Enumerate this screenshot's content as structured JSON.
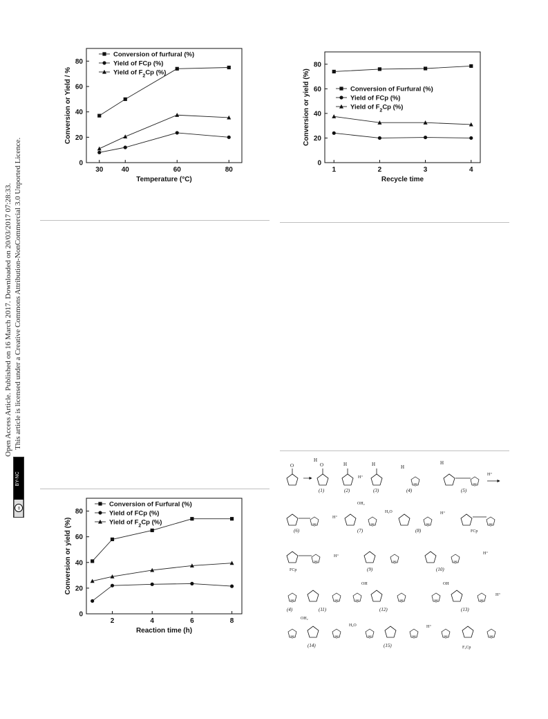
{
  "sidebar": {
    "line1": "Open Access Article. Published on 16 March 2017. Downloaded on 20/03/2017 07:28:33.",
    "line2": "This article is licensed under a Creative Commons Attribution-NonCommercial 3.0 Unported Licence.",
    "badge_cc": "cc",
    "badge_by": "BY-NC"
  },
  "chart_data": [
    {
      "type": "line",
      "xlabel": "Temperature (°C)",
      "ylabel": "Conversion or Yield / %",
      "x": [
        30,
        40,
        60,
        80
      ],
      "xlim": [
        25,
        85
      ],
      "ylim": [
        0,
        90
      ],
      "xticks": [
        "30",
        "40",
        "60",
        "80"
      ],
      "yticks": [
        "0",
        "20",
        "40",
        "60",
        "80"
      ],
      "legend_position": "top-left",
      "series": [
        {
          "name": "Conversion of furfural (%)",
          "marker": "square",
          "values": [
            37,
            50,
            74,
            75
          ]
        },
        {
          "name": "Yield of FCp (%)",
          "marker": "circle",
          "values": [
            8,
            12,
            23.5,
            20
          ]
        },
        {
          "name": "Yield of F2Cp (%)",
          "marker": "triangle",
          "values": [
            11,
            20.5,
            37.5,
            35.5
          ]
        }
      ]
    },
    {
      "type": "line",
      "xlabel": "Recycle time",
      "ylabel": "Conversion or yield (%)",
      "x": [
        1,
        2,
        3,
        4
      ],
      "xlim": [
        0.8,
        4.2
      ],
      "ylim": [
        0,
        90
      ],
      "xticks": [
        "1",
        "2",
        "3",
        "4"
      ],
      "yticks": [
        "0",
        "20",
        "40",
        "60",
        "80"
      ],
      "legend_position": "center-left",
      "series": [
        {
          "name": "Conversion of Furfural (%)",
          "marker": "square",
          "values": [
            74,
            76,
            76.5,
            78.5
          ]
        },
        {
          "name": "Yield of FCp (%)",
          "marker": "circle",
          "values": [
            24,
            20,
            20.5,
            20
          ]
        },
        {
          "name": "Yield of F2Cp (%)",
          "marker": "triangle",
          "values": [
            37.5,
            32.5,
            32.5,
            31
          ]
        }
      ]
    },
    {
      "type": "line",
      "xlabel": "Reaction time (h)",
      "ylabel": "Conversion or yield (%)",
      "x": [
        1,
        2,
        4,
        6,
        8
      ],
      "xlim": [
        0.7,
        8.5
      ],
      "ylim": [
        0,
        90
      ],
      "xticks": [
        "2",
        "4",
        "6",
        "8"
      ],
      "xtick_values": [
        2,
        4,
        6,
        8
      ],
      "yticks": [
        "0",
        "20",
        "40",
        "60",
        "80"
      ],
      "legend_position": "top-left",
      "series": [
        {
          "name": "Conversion of Furfural (%)",
          "marker": "square",
          "values": [
            41,
            58,
            65,
            74,
            74
          ]
        },
        {
          "name": "Yield of FCp (%)",
          "marker": "circle",
          "values": [
            10,
            22,
            23,
            23.5,
            21.5
          ]
        },
        {
          "name": "Yield of F2Cp (%)",
          "marker": "triangle",
          "values": [
            25.5,
            29,
            34,
            37.5,
            39.5
          ]
        }
      ]
    }
  ],
  "scheme": {
    "labels_row1": [
      "(1)",
      "(2)",
      "(3)",
      "(4)",
      "(5)"
    ],
    "labels_row2": [
      "(6)",
      "(7)",
      "(8)",
      "FCp"
    ],
    "labels_row3": [
      "FCp",
      "(9)",
      "(10)"
    ],
    "labels_row4": [
      "(4)",
      "(11)",
      "(12)",
      "(13)"
    ],
    "labels_row5": [
      "(14)",
      "(15)",
      "F₂Cp"
    ],
    "hplus": "H⁺",
    "water": "H₂O",
    "oh2": "OH₂",
    "oh": "OH",
    "o": "O",
    "h": "H"
  }
}
